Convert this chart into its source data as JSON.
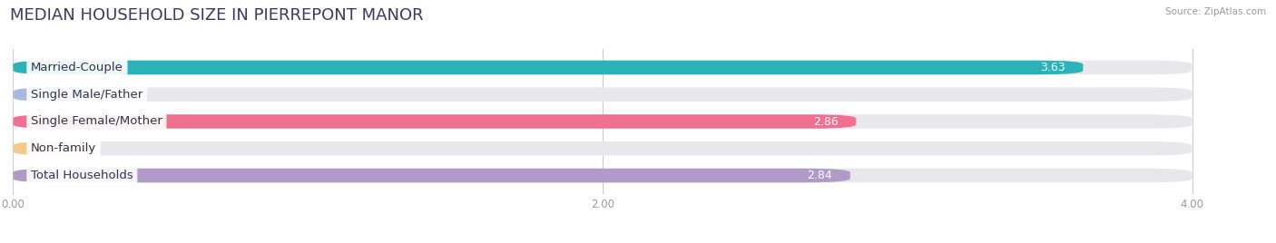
{
  "title": "MEDIAN HOUSEHOLD SIZE IN PIERREPONT MANOR",
  "source": "Source: ZipAtlas.com",
  "categories": [
    "Married-Couple",
    "Single Male/Father",
    "Single Female/Mother",
    "Non-family",
    "Total Households"
  ],
  "values": [
    3.63,
    0.0,
    2.86,
    0.0,
    2.84
  ],
  "bar_colors": [
    "#2ab3b8",
    "#a8b8e0",
    "#f07090",
    "#f5c98a",
    "#b09ac8"
  ],
  "background_color": "#ffffff",
  "bar_bg_color": "#e8e8ec",
  "xlim": [
    0,
    4.0
  ],
  "xticks": [
    0.0,
    2.0,
    4.0
  ],
  "xtick_labels": [
    "0.00",
    "2.00",
    "4.00"
  ],
  "title_fontsize": 13,
  "label_fontsize": 9.5,
  "value_fontsize": 9,
  "bar_height": 0.52
}
